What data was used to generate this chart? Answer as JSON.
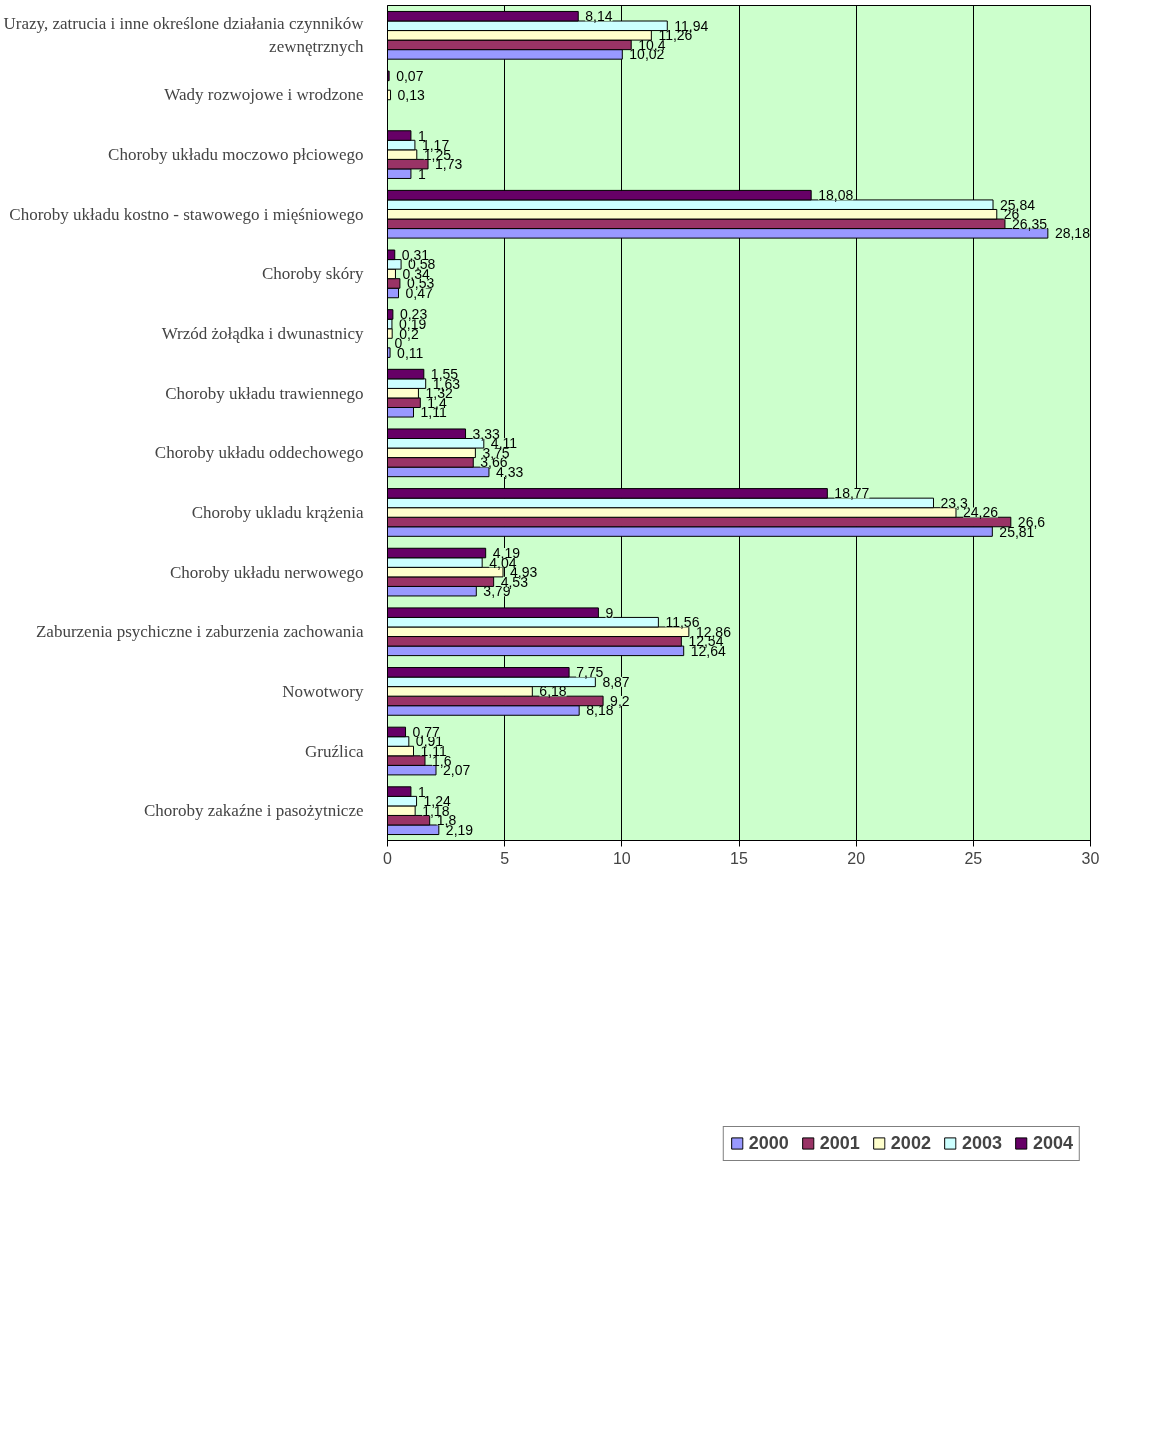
{
  "chart_data": {
    "type": "bar",
    "orientation": "horizontal",
    "categories": [
      "Urazy, zatrucia i inne określone działania czynników zewnętrznych",
      "Wady rozwojowe i wrodzone",
      "Choroby układu moczowo płciowego",
      "Choroby układu kostno - stawowego i mięśniowego",
      "Choroby skóry",
      "Wrzód żołądka i dwunastnicy",
      "Choroby układu trawiennego",
      "Choroby układu oddechowego",
      "Choroby ukladu krążenia",
      "Choroby układu nerwowego",
      "Zaburzenia psychiczne i zaburzenia zachowania",
      "Nowotwory",
      "Gruźlica",
      "Choroby zakaźne i pasożytnicze"
    ],
    "series": [
      {
        "name": "2000",
        "color": "#9999ff",
        "values": [
          10.02,
          null,
          1,
          28.18,
          0.47,
          0.11,
          1.11,
          4.33,
          25.81,
          3.79,
          12.64,
          8.18,
          2.07,
          2.19
        ],
        "value_labels": [
          "10,02",
          null,
          "1",
          "28,18",
          "0,47",
          "0,11",
          "1,11",
          "4,33",
          "25,81",
          "3,79",
          "12,64",
          "8,18",
          "2,07",
          "2,19"
        ]
      },
      {
        "name": "2001",
        "color": "#993366",
        "values": [
          10.4,
          null,
          1.73,
          26.35,
          0.53,
          0,
          1.4,
          3.66,
          26.6,
          4.53,
          12.54,
          9.2,
          1.6,
          1.8
        ],
        "value_labels": [
          "10,4",
          null,
          "1,73",
          "26,35",
          "0,53",
          "0",
          "1,4",
          "3,66",
          "26,6",
          "4,53",
          "12,54",
          "9,2",
          "1,6",
          "1,8"
        ]
      },
      {
        "name": "2002",
        "color": "#ffffcc",
        "values": [
          11.26,
          0.13,
          1.25,
          26,
          0.34,
          0.2,
          1.32,
          3.75,
          24.26,
          4.93,
          12.86,
          6.18,
          1.11,
          1.18
        ],
        "value_labels": [
          "11,26",
          "0,13",
          "1,25",
          "26",
          "0,34",
          "0,2",
          "1,32",
          "3,75",
          "24,26",
          "4,93",
          "12,86",
          "6,18",
          "1,11",
          "1,18"
        ]
      },
      {
        "name": "2003",
        "color": "#ccffff",
        "values": [
          11.94,
          null,
          1.17,
          25.84,
          0.58,
          0.19,
          1.63,
          4.11,
          23.3,
          4.04,
          11.56,
          8.87,
          0.91,
          1.24
        ],
        "value_labels": [
          "11,94",
          null,
          "1,17",
          "25,84",
          "0,58",
          "0,19",
          "1,63",
          "4,11",
          "23,3",
          "4,04",
          "11,56",
          "8,87",
          "0,91",
          "1,24"
        ]
      },
      {
        "name": "2004",
        "color": "#660066",
        "values": [
          8.14,
          0.07,
          1,
          18.08,
          0.31,
          0.23,
          1.55,
          3.33,
          18.77,
          4.19,
          9,
          7.75,
          0.77,
          1
        ],
        "value_labels": [
          "8,14",
          "0,07",
          "1",
          "18,08",
          "0,31",
          "0,23",
          "1,55",
          "3,33",
          "18,77",
          "4,19",
          "9",
          "7,75",
          "0,77",
          "1"
        ]
      }
    ],
    "xlim": [
      0,
      30
    ],
    "xticks": [
      0,
      5,
      10,
      15,
      20,
      25,
      30
    ],
    "grid": "x",
    "legend": "bottom"
  }
}
